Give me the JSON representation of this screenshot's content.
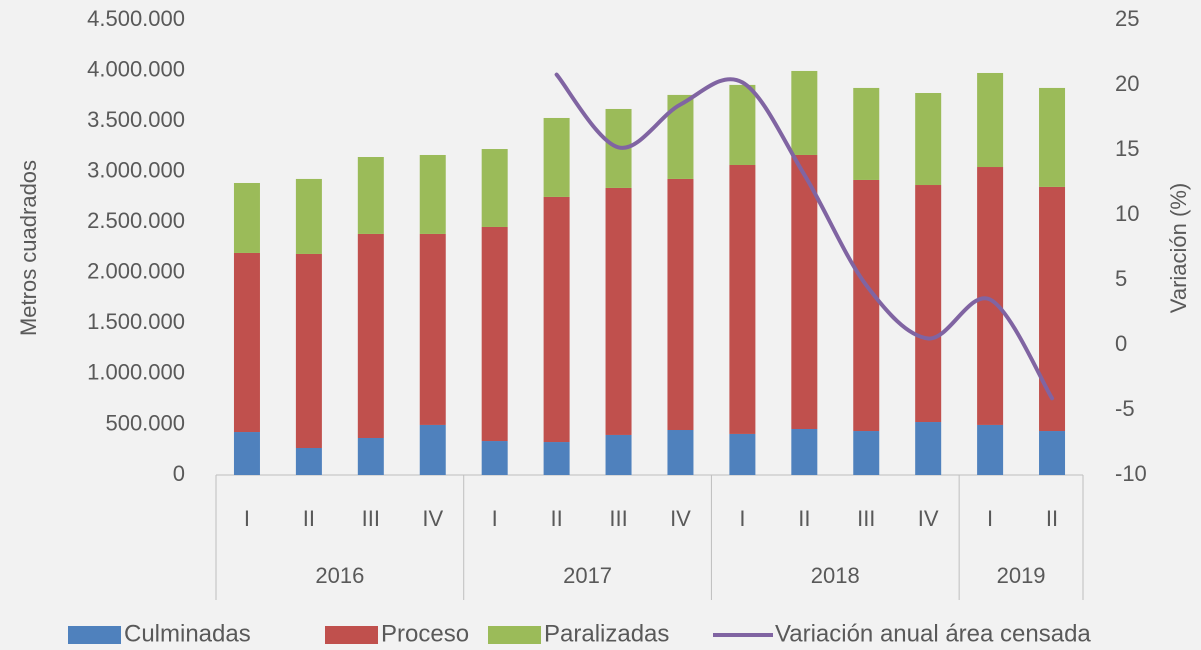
{
  "chart_data": {
    "type": "stacked-bar-line",
    "y_label": "Metros cuadrados",
    "y2_label": "Variación (%)",
    "groups": [
      {
        "name": "2016",
        "categories": [
          "I",
          "II",
          "III",
          "IV"
        ]
      },
      {
        "name": "2017",
        "categories": [
          "I",
          "II",
          "III",
          "IV"
        ]
      },
      {
        "name": "2018",
        "categories": [
          "I",
          "II",
          "III",
          "IV"
        ]
      },
      {
        "name": "2019",
        "categories": [
          "I",
          "II"
        ]
      }
    ],
    "series": [
      {
        "name": "Culminadas",
        "color": "#4f81bd",
        "kind": "bar",
        "values": [
          425000,
          267000,
          366000,
          495000,
          336000,
          326000,
          396000,
          445000,
          406000,
          455000,
          435000,
          524000,
          495000,
          435000
        ]
      },
      {
        "name": "Proceso",
        "color": "#c0504d",
        "kind": "bar",
        "values": [
          1771000,
          1919000,
          2018000,
          1889000,
          2117000,
          2424000,
          2443000,
          2483000,
          2660000,
          2710000,
          2483000,
          2344000,
          2551000,
          2414000
        ]
      },
      {
        "name": "Paralizadas",
        "color": "#9bbb59",
        "kind": "bar",
        "values": [
          692000,
          742000,
          761000,
          781000,
          771000,
          781000,
          781000,
          831000,
          792000,
          831000,
          910000,
          910000,
          930000,
          979000
        ]
      },
      {
        "name": "Variación anual área censada",
        "color": "#8064a2",
        "kind": "line",
        "axis": "y2",
        "values": [
          null,
          null,
          null,
          null,
          null,
          20.8,
          15.2,
          18.5,
          20.2,
          13.1,
          4.6,
          0.5,
          3.5,
          -4.1
        ]
      }
    ],
    "ylim": [
      0,
      4500000
    ],
    "yticks": [
      0,
      {
        "value": 500000,
        "label": "500.000"
      },
      {
        "value": 1000000,
        "label": "1.000.000"
      },
      {
        "value": 1500000,
        "label": "1.500.000"
      },
      {
        "value": 2000000,
        "label": "2.000.000"
      },
      {
        "value": 2500000,
        "label": "2.500.000"
      },
      {
        "value": 3000000,
        "label": "3.000.000"
      },
      {
        "value": 3500000,
        "label": "3.500.000"
      },
      {
        "value": 4000000,
        "label": "4.000.000"
      },
      {
        "value": 4500000,
        "label": "4.500.000"
      }
    ],
    "y2lim": [
      -10,
      25
    ],
    "y2ticks": [
      -10,
      -5,
      0,
      5,
      10,
      15,
      20,
      25
    ],
    "legend": "bottom"
  }
}
